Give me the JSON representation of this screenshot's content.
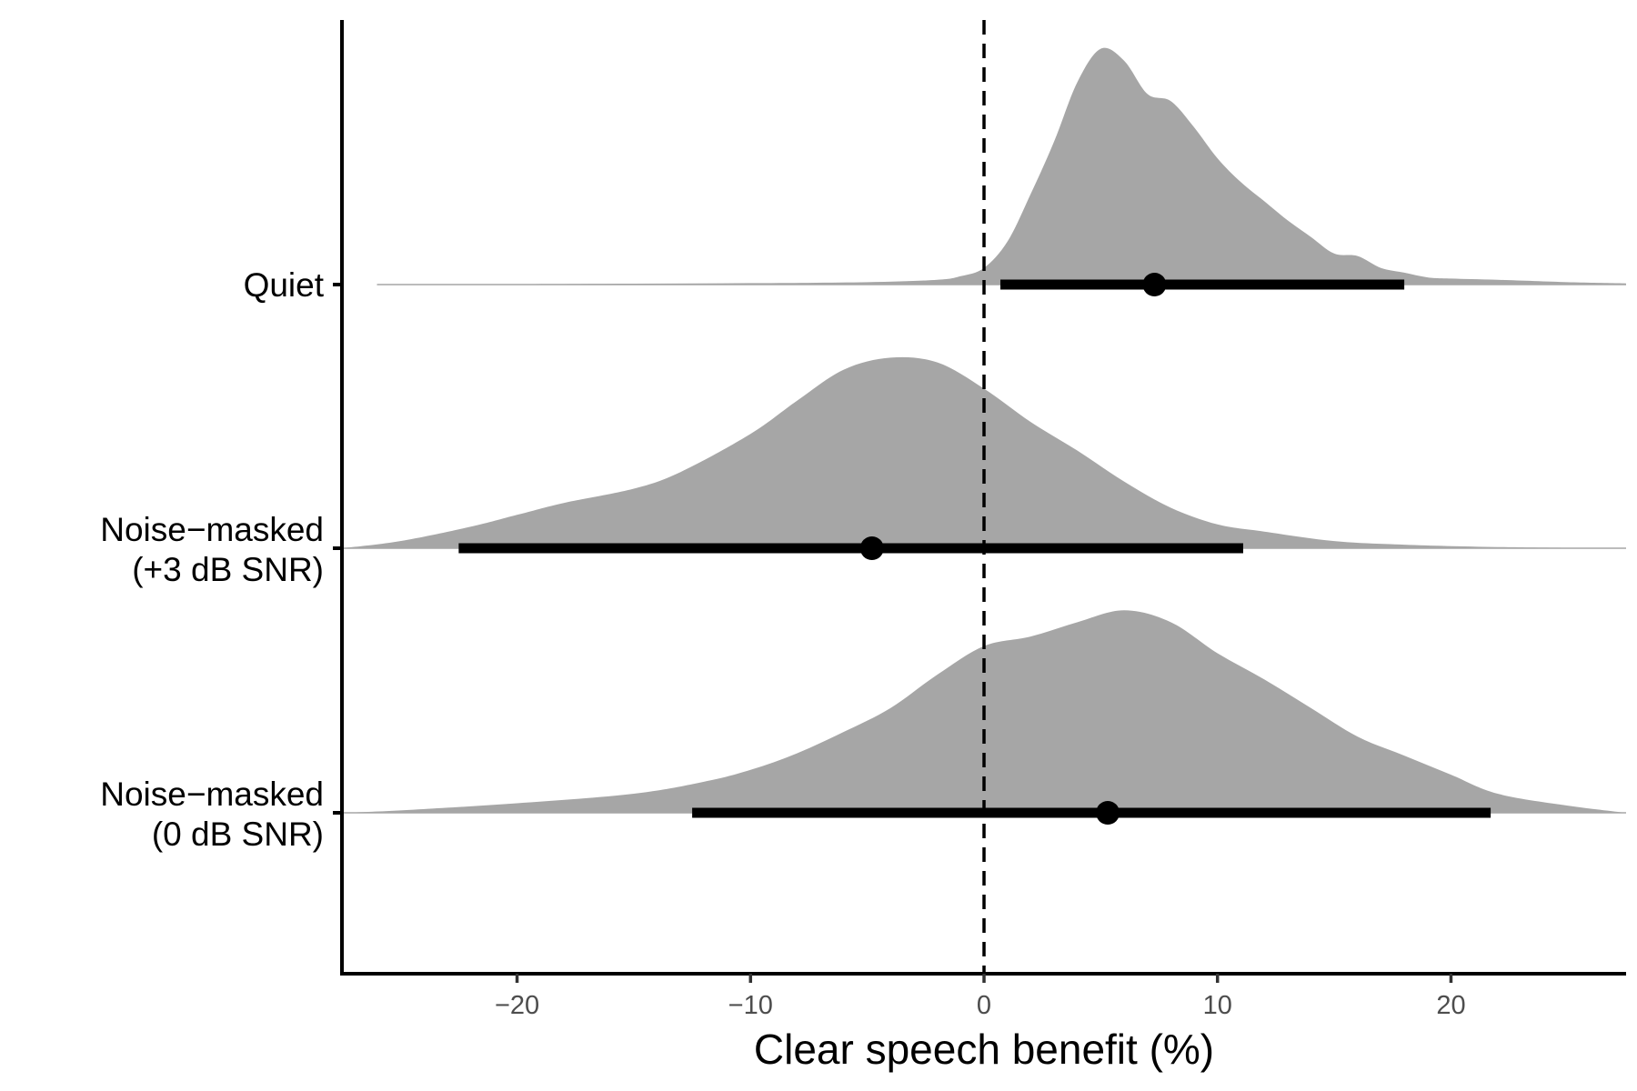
{
  "chart_data": {
    "type": "area",
    "subtype": "ridgeline-density-with-interval",
    "title": "",
    "xlabel": "Clear speech benefit (%)",
    "ylabel": "",
    "xlim": [
      -27.5,
      27.5
    ],
    "xticks": [
      -20,
      -10,
      0,
      10,
      20
    ],
    "xtick_labels": [
      "−20",
      "−10",
      "0",
      "10",
      "20"
    ],
    "reference_line": {
      "x": 0,
      "style": "dashed"
    },
    "grid": false,
    "legend": "none",
    "fill_color": "#a6a6a6",
    "interval_color": "#000000",
    "categories": [
      {
        "label_lines": [
          "Quiet"
        ],
        "point": 7.3,
        "interval": [
          0.7,
          18.0
        ],
        "density": {
          "x": [
            -26,
            -20,
            -15,
            -10,
            -5,
            -2,
            -1,
            0,
            1,
            2,
            3,
            4,
            5,
            6,
            7,
            8,
            9,
            10,
            11,
            12,
            13,
            14,
            15,
            16,
            17,
            18,
            19,
            20,
            22,
            25,
            27.5
          ],
          "y": [
            0.0,
            0.002,
            0.004,
            0.006,
            0.01,
            0.02,
            0.035,
            0.07,
            0.18,
            0.38,
            0.6,
            0.85,
            0.99,
            0.94,
            0.8,
            0.77,
            0.66,
            0.53,
            0.43,
            0.35,
            0.27,
            0.2,
            0.13,
            0.12,
            0.07,
            0.05,
            0.03,
            0.025,
            0.02,
            0.01,
            0.005
          ]
        }
      },
      {
        "label_lines": [
          "Noise−masked",
          "(+3 dB SNR)"
        ],
        "point": -4.8,
        "interval": [
          -22.5,
          11.1
        ],
        "density": {
          "x": [
            -27.5,
            -25,
            -22,
            -20,
            -18,
            -15,
            -13,
            -10,
            -8,
            -6,
            -4,
            -2,
            0,
            2,
            4,
            6,
            8,
            10,
            12,
            15,
            18,
            22,
            27.5
          ],
          "y": [
            0.0,
            0.03,
            0.09,
            0.14,
            0.19,
            0.25,
            0.32,
            0.48,
            0.62,
            0.75,
            0.8,
            0.78,
            0.67,
            0.53,
            0.41,
            0.28,
            0.17,
            0.1,
            0.07,
            0.03,
            0.015,
            0.005,
            0.0
          ]
        }
      },
      {
        "label_lines": [
          "Noise−masked",
          "(0 dB SNR)"
        ],
        "point": 5.3,
        "interval": [
          -12.5,
          21.7
        ],
        "density": {
          "x": [
            -27.5,
            -25,
            -20,
            -15,
            -12,
            -10,
            -8,
            -6,
            -4,
            -2,
            0,
            2,
            4,
            6,
            8,
            10,
            12,
            14,
            16,
            18,
            20,
            22,
            25,
            27.5
          ],
          "y": [
            0.0,
            0.01,
            0.04,
            0.08,
            0.13,
            0.18,
            0.25,
            0.34,
            0.44,
            0.58,
            0.7,
            0.74,
            0.8,
            0.85,
            0.8,
            0.67,
            0.56,
            0.44,
            0.32,
            0.24,
            0.16,
            0.08,
            0.03,
            0.0
          ]
        }
      }
    ]
  }
}
